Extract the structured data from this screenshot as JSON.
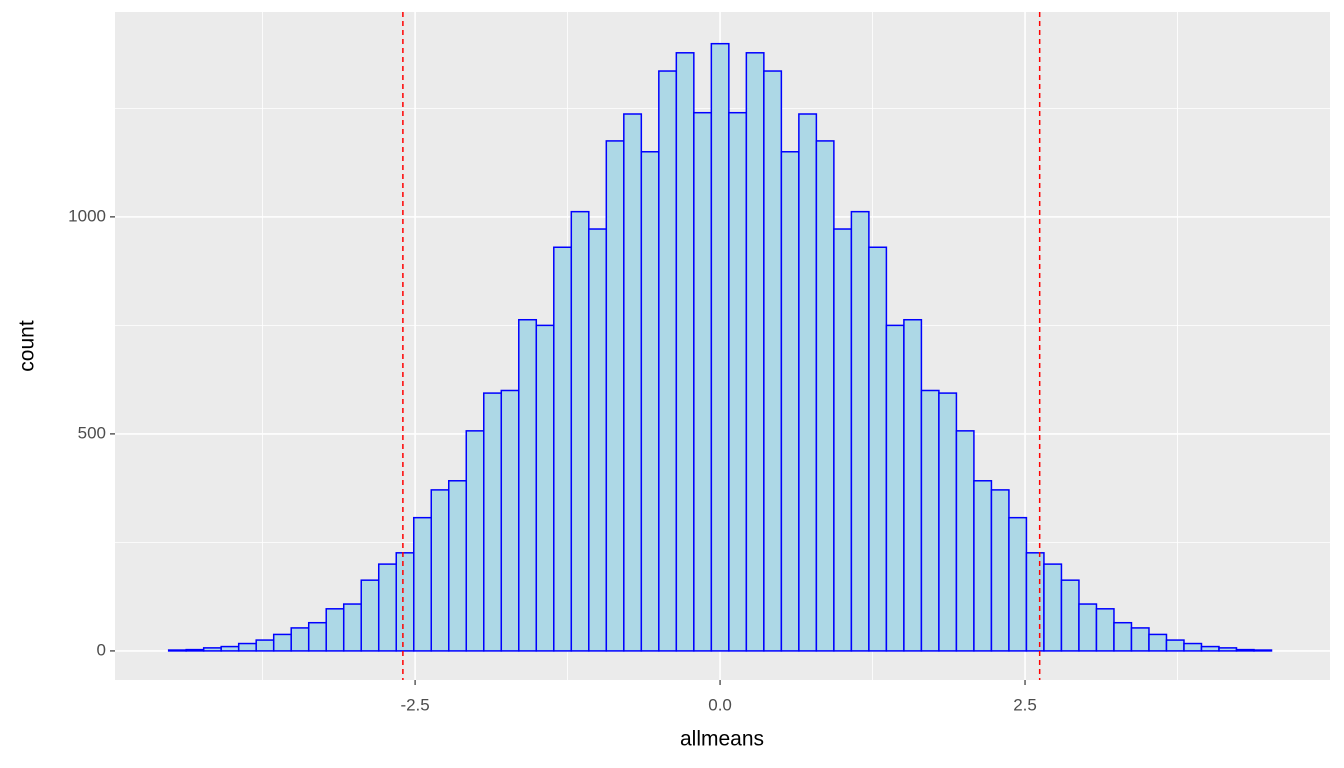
{
  "chart_data": {
    "type": "histogram",
    "x_label": "allmeans",
    "y_label": "count",
    "bins": [
      -4.52,
      -4.3765,
      -4.233,
      -4.0895,
      -3.946,
      -3.8025,
      -3.659,
      -3.5155,
      -3.372,
      -3.2285,
      -3.085,
      -2.9415,
      -2.798,
      -2.6545,
      -2.511,
      -2.3675,
      -2.224,
      -2.0805,
      -1.937,
      -1.7935,
      -1.65,
      -1.5065,
      -1.363,
      -1.2195,
      -1.076,
      -0.9325,
      -0.789,
      -0.6455,
      -0.502,
      -0.3585,
      -0.215,
      -0.0715,
      0.072,
      0.2155,
      0.359,
      0.5025,
      0.646,
      0.7895,
      0.933,
      1.0765,
      1.22,
      1.3635,
      1.507,
      1.6505,
      1.794,
      1.9375,
      2.081,
      2.2245,
      2.368,
      2.5115,
      2.655,
      2.7985,
      2.942,
      3.0855,
      3.229,
      3.3725,
      3.516,
      3.6595,
      3.803,
      3.9465,
      4.09,
      4.2335,
      4.377,
      4.5205
    ],
    "values": [
      2,
      3,
      7,
      10,
      17,
      25,
      38,
      53,
      65,
      97,
      108,
      163,
      200,
      226,
      307,
      371,
      392,
      507,
      594,
      600,
      763,
      750,
      930,
      1012,
      972,
      1175,
      1237,
      1150,
      1336,
      1378,
      1240,
      1399,
      1240,
      1378,
      1336,
      1150,
      1237,
      1175,
      972,
      1012,
      930,
      750,
      763,
      600,
      594,
      507,
      392,
      371,
      307,
      226,
      200,
      163,
      108,
      97,
      65,
      53,
      38,
      25,
      17,
      10,
      7,
      3,
      2
    ],
    "color": "#add8e6",
    "edge_color": "#0000ff",
    "vlines": [
      -2.6,
      2.62
    ],
    "vline_color": "#ff0000",
    "xlim": [
      -4.96,
      5.0
    ],
    "ylim": [
      -67,
      1472
    ],
    "xticks": [
      -2.5,
      {
        "value": 0,
        "label": "0.0"
      },
      2.5
    ],
    "yticks": [
      0,
      500,
      1000
    ],
    "x_minor_ticks": [
      -3.75,
      -1.25,
      1.25,
      3.75
    ],
    "y_minor_ticks": [
      250,
      750,
      1250
    ],
    "grid": true
  }
}
